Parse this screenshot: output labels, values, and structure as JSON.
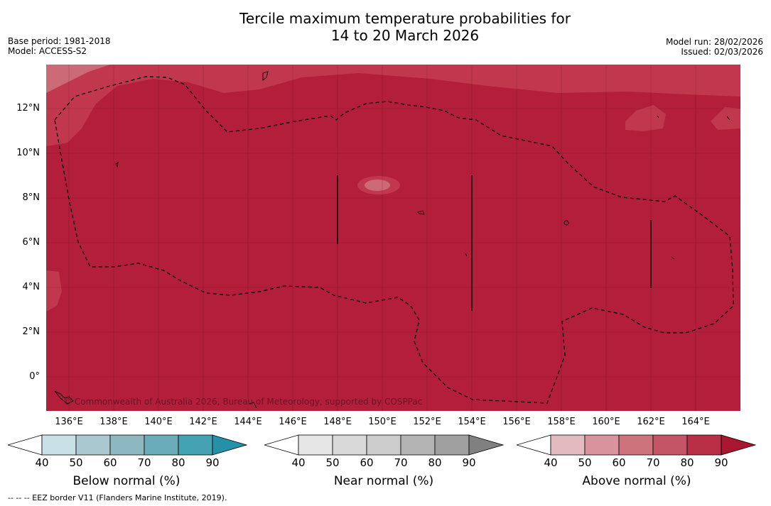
{
  "title": {
    "line1": "Tercile maximum temperature probabilities for",
    "line2": "14 to 20 March 2026"
  },
  "left_meta": {
    "base_period": "Base period: 1981-2018",
    "model": "Model: ACCESS-S2"
  },
  "right_meta": {
    "model_run": "Model run: 28/02/2026",
    "issued": "Issued: 02/03/2026"
  },
  "map": {
    "lat_labels": [
      "12°N",
      "10°N",
      "8°N",
      "6°N",
      "4°N",
      "2°N",
      "0°"
    ],
    "lon_labels": [
      "136°E",
      "138°E",
      "140°E",
      "142°E",
      "144°E",
      "146°E",
      "148°E",
      "150°E",
      "152°E",
      "154°E",
      "156°E",
      "158°E",
      "160°E",
      "162°E",
      "164°E"
    ],
    "copyright": "© Commonwealth of Australia 2026, Bureau of Meteorology, supported by COSPPac",
    "colors": {
      "dominant": "#b31e3b",
      "shade_70_80": "#c1384e",
      "shade_60_70": "#cc6a78",
      "shade_50_60": "#d7939c",
      "eez_line": "#000000"
    }
  },
  "legends": [
    {
      "title": "Below normal (%)",
      "ticks": [
        "40",
        "50",
        "60",
        "70",
        "80",
        "90"
      ],
      "colors": [
        "#ffffff",
        "#c8e1e7",
        "#a9c8cf",
        "#8db7c1",
        "#6cabba",
        "#45a2b3",
        "#2591a8"
      ]
    },
    {
      "title": "Near normal (%)",
      "ticks": [
        "40",
        "50",
        "60",
        "70",
        "80",
        "90"
      ],
      "colors": [
        "#ffffff",
        "#e6e6e6",
        "#d9d9d9",
        "#cccccc",
        "#b4b4b4",
        "#a0a0a0",
        "#808080"
      ]
    },
    {
      "title": "Above normal (%)",
      "ticks": [
        "40",
        "50",
        "60",
        "70",
        "80",
        "90"
      ],
      "colors": [
        "#ffffff",
        "#e3bac0",
        "#d9939c",
        "#cd737c",
        "#c45566",
        "#b82f46",
        "#a8162f"
      ]
    }
  ],
  "footnote": "--  --  -- EEZ border V11 (Flanders Marine Institute, 2019)."
}
